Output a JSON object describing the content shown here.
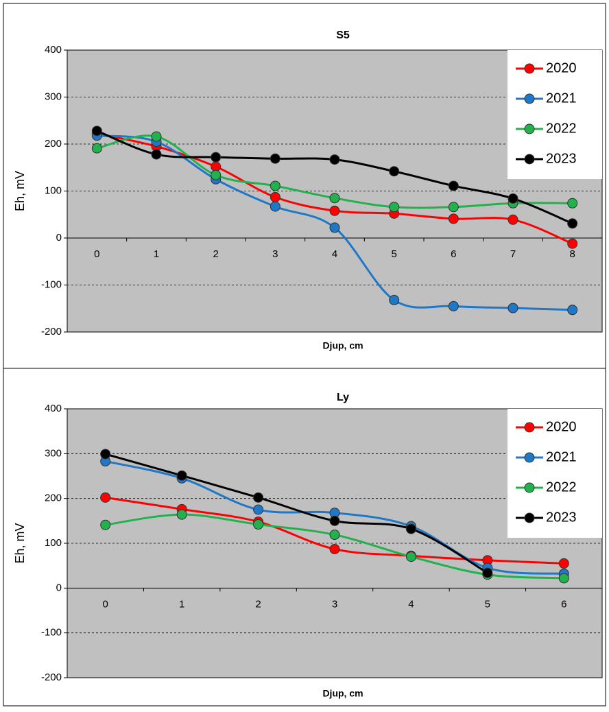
{
  "chart_data": [
    {
      "type": "line",
      "title": "S5",
      "x_label": "Djup, cm",
      "y_label": "Eh, mV",
      "categories": [
        "0",
        "1",
        "2",
        "3",
        "4",
        "5",
        "6",
        "7",
        "8"
      ],
      "series": [
        {
          "name": "2020",
          "color": "#ff0000",
          "values": [
            222,
            195,
            152,
            87,
            58,
            52,
            41,
            39,
            -12
          ]
        },
        {
          "name": "2021",
          "color": "#1f77c8",
          "values": [
            218,
            205,
            125,
            67,
            22,
            -132,
            -145,
            -149,
            -153
          ]
        },
        {
          "name": "2022",
          "color": "#22b14c",
          "values": [
            191,
            216,
            134,
            111,
            85,
            66,
            66,
            74,
            74
          ]
        },
        {
          "name": "2023",
          "color": "#000000",
          "values": [
            228,
            178,
            172,
            169,
            167,
            142,
            111,
            84,
            31
          ]
        }
      ],
      "ylim": [
        -200,
        400
      ],
      "yticks": [
        -200,
        -100,
        0,
        100,
        200,
        300,
        400
      ],
      "grid": true,
      "legend": "upper right"
    },
    {
      "type": "line",
      "title": "Ly",
      "x_label": "Djup,  cm",
      "y_label": "Eh, mV",
      "categories": [
        "0",
        "1",
        "2",
        "3",
        "4",
        "5",
        "6"
      ],
      "series": [
        {
          "name": "2020",
          "color": "#ff0000",
          "values": [
            202,
            176,
            148,
            87,
            72,
            62,
            55
          ]
        },
        {
          "name": "2021",
          "color": "#1f77c8",
          "values": [
            283,
            245,
            175,
            168,
            138,
            45,
            32
          ]
        },
        {
          "name": "2022",
          "color": "#22b14c",
          "values": [
            141,
            164,
            142,
            119,
            70,
            30,
            22
          ]
        },
        {
          "name": "2023",
          "color": "#000000",
          "values": [
            299,
            251,
            202,
            150,
            132,
            34,
            null
          ]
        }
      ],
      "ylim": [
        -200,
        400
      ],
      "yticks": [
        -200,
        -100,
        0,
        100,
        200,
        300,
        400
      ],
      "grid": true,
      "legend": "upper right"
    }
  ]
}
